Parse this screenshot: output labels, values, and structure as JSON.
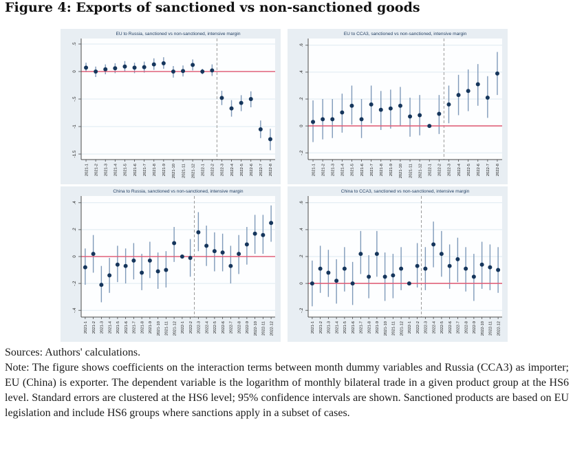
{
  "title": "Figure 4: Exports of sanctioned vs non-sanctioned goods",
  "notes": {
    "sources": "Sources: Authors' calculations.",
    "note": "Note: The figure shows coefficients on the interaction terms between month dummy variables and Russia (CCA3) as importer; EU (China) is exporter. The dependent variable is the logarithm of monthly bilateral trade in a given product group at the HS6 level. Standard errors are clustered at the HS6 level; 95% confidence intervals are shown. Sanctioned products are based on EU legislation and include HS6 groups where sanctions apply in a subset of cases."
  },
  "style": {
    "panel_bg": "#e8eef3",
    "plot_bg": "#fdfeff",
    "grid_color": "#dde9f1",
    "axis_color": "#4a4a4a",
    "tick_text_color": "#222222",
    "panel_title_color": "#1d3a5e",
    "point_color": "#16365c",
    "ci_color": "#7e99b9",
    "zero_line_color": "#e0607a",
    "dash_line_color": "#999999"
  },
  "chart_data": [
    {
      "type": "scatter",
      "title": "EU to Russia, sanctioned vs non-sanctioned, intensive margin",
      "x": [
        "2021-1",
        "2021-2",
        "2021-3",
        "2021-4",
        "2021-5",
        "2021-6",
        "2021-7",
        "2021-8",
        "2021-9",
        "2021-10",
        "2021-11",
        "2021-12",
        "2022-1",
        "2022-2",
        "2022-3",
        "2022-4",
        "2022-5",
        "2022-6",
        "2022-7",
        "2022-8"
      ],
      "ylim": [
        -1.6,
        0.6
      ],
      "yticks": [
        0.5,
        0,
        -0.5,
        -1,
        -1.5
      ],
      "ytick_labels": [
        ".5",
        "0",
        "-.5",
        "-1",
        "-1.5"
      ],
      "dash_after": "2022-2",
      "series": [
        {
          "name": "coefficient with 95% CI",
          "est": [
            0.07,
            0.0,
            0.04,
            0.06,
            0.09,
            0.07,
            0.08,
            0.13,
            0.15,
            0.0,
            0.01,
            0.12,
            0.0,
            0.02,
            -0.48,
            -0.67,
            -0.57,
            -0.5,
            -1.05,
            -1.23
          ],
          "lo": [
            -0.01,
            -0.1,
            -0.05,
            -0.03,
            0.0,
            -0.03,
            -0.02,
            0.03,
            0.05,
            -0.11,
            -0.09,
            0.02,
            -0.05,
            -0.08,
            -0.61,
            -0.82,
            -0.72,
            -0.65,
            -1.21,
            -1.43
          ],
          "hi": [
            0.16,
            0.09,
            0.13,
            0.15,
            0.19,
            0.16,
            0.18,
            0.24,
            0.26,
            0.1,
            0.11,
            0.22,
            0.05,
            0.13,
            -0.35,
            -0.52,
            -0.43,
            -0.36,
            -0.89,
            -1.04
          ]
        }
      ]
    },
    {
      "type": "scatter",
      "title": "EU to CCA3, sanctioned vs non-sanctioned, intensive margin",
      "x": [
        "2021-1",
        "2021-2",
        "2021-3",
        "2021-4",
        "2021-5",
        "2021-6",
        "2021-7",
        "2021-8",
        "2021-9",
        "2021-10",
        "2021-11",
        "2021-12",
        "2022-1",
        "2022-2",
        "2022-3",
        "2022-4",
        "2022-5",
        "2022-6",
        "2022-7",
        "2022-8"
      ],
      "ylim": [
        -0.25,
        0.65
      ],
      "yticks": [
        0.6,
        0.4,
        0.2,
        0,
        -0.2
      ],
      "ytick_labels": [
        ".6",
        ".4",
        ".2",
        "0",
        "-.2"
      ],
      "dash_after": "2022-2",
      "series": [
        {
          "name": "coefficient with 95% CI",
          "est": [
            0.03,
            0.05,
            0.05,
            0.1,
            0.15,
            0.05,
            0.16,
            0.12,
            0.13,
            0.15,
            0.07,
            0.08,
            0.0,
            0.09,
            0.16,
            0.23,
            0.26,
            0.31,
            0.21,
            0.39
          ],
          "lo": [
            -0.12,
            -0.1,
            -0.09,
            -0.05,
            0.01,
            -0.09,
            0.02,
            -0.03,
            -0.02,
            0.0,
            -0.08,
            -0.07,
            0.0,
            -0.06,
            0.02,
            0.08,
            0.11,
            0.15,
            0.06,
            0.23
          ],
          "hi": [
            0.19,
            0.2,
            0.2,
            0.24,
            0.3,
            0.2,
            0.3,
            0.26,
            0.27,
            0.29,
            0.21,
            0.23,
            0.0,
            0.23,
            0.3,
            0.38,
            0.42,
            0.46,
            0.37,
            0.55
          ]
        }
      ]
    },
    {
      "type": "scatter",
      "title": "China to Russia, sanctioned vs non-sanctioned, intensive margin",
      "x": [
        "2021-1",
        "2021-2",
        "2021-3",
        "2021-4",
        "2021-5",
        "2021-6",
        "2021-7",
        "2021-8",
        "2021-9",
        "2021-10",
        "2021-11",
        "2021-12",
        "2022-1",
        "2022-2",
        "2022-3",
        "2022-4",
        "2022-5",
        "2022-6",
        "2022-7",
        "2022-8",
        "2022-9",
        "2022-10",
        "2022-11",
        "2022-12"
      ],
      "ylim": [
        -0.45,
        0.45
      ],
      "yticks": [
        0.4,
        0.2,
        0,
        -0.2,
        -0.4
      ],
      "ytick_labels": [
        ".4",
        ".2",
        "0",
        "-.2",
        "-.4"
      ],
      "dash_after": "2022-2",
      "series": [
        {
          "name": "coefficient with 95% CI",
          "est": [
            -0.08,
            0.02,
            -0.21,
            -0.14,
            -0.06,
            -0.07,
            -0.03,
            -0.12,
            -0.03,
            -0.11,
            -0.1,
            0.1,
            0.0,
            -0.01,
            0.18,
            0.08,
            0.04,
            0.03,
            -0.07,
            0.02,
            0.09,
            0.17,
            0.16,
            0.25
          ],
          "lo": [
            -0.21,
            -0.12,
            -0.34,
            -0.27,
            -0.19,
            -0.2,
            -0.17,
            -0.25,
            -0.16,
            -0.24,
            -0.23,
            -0.04,
            0.0,
            -0.15,
            0.04,
            -0.07,
            -0.11,
            -0.11,
            -0.2,
            -0.13,
            -0.06,
            0.02,
            0.02,
            0.11
          ],
          "hi": [
            0.06,
            0.16,
            -0.07,
            -0.01,
            0.08,
            0.06,
            0.1,
            0.02,
            0.11,
            0.03,
            0.04,
            0.22,
            0.0,
            0.13,
            0.33,
            0.23,
            0.18,
            0.17,
            0.08,
            0.16,
            0.22,
            0.31,
            0.31,
            0.38
          ]
        }
      ]
    },
    {
      "type": "scatter",
      "title": "China to CCA3, sanctioned vs non-sanctioned, intensive margin",
      "x": [
        "2021-1",
        "2021-2",
        "2021-3",
        "2021-4",
        "2021-5",
        "2021-6",
        "2021-7",
        "2021-8",
        "2021-9",
        "2021-10",
        "2021-11",
        "2021-12",
        "2022-1",
        "2022-2",
        "2022-3",
        "2022-4",
        "2022-5",
        "2022-6",
        "2022-7",
        "2022-8",
        "2022-9",
        "2022-10",
        "2022-11",
        "2022-12"
      ],
      "ylim": [
        -0.25,
        0.65
      ],
      "yticks": [
        0.6,
        0.4,
        0.2,
        0,
        -0.2
      ],
      "ytick_labels": [
        ".6",
        ".4",
        ".2",
        "0",
        "-.2"
      ],
      "dash_after": "2022-2",
      "series": [
        {
          "name": "coefficient with 95% CI",
          "est": [
            0.0,
            0.11,
            0.08,
            0.02,
            0.11,
            0.0,
            0.22,
            0.05,
            0.22,
            0.05,
            0.06,
            0.11,
            0.0,
            0.13,
            0.11,
            0.29,
            0.22,
            0.13,
            0.18,
            0.11,
            0.05,
            0.14,
            0.12,
            0.1
          ],
          "lo": [
            -0.17,
            -0.07,
            -0.1,
            -0.15,
            -0.06,
            -0.16,
            0.07,
            -0.11,
            0.05,
            -0.13,
            -0.11,
            -0.05,
            0.0,
            -0.03,
            -0.05,
            0.12,
            0.05,
            -0.04,
            0.01,
            -0.06,
            -0.13,
            -0.04,
            -0.05,
            -0.07
          ],
          "hi": [
            0.17,
            0.28,
            0.25,
            0.18,
            0.27,
            0.16,
            0.39,
            0.21,
            0.39,
            0.23,
            0.22,
            0.27,
            0.0,
            0.3,
            0.27,
            0.46,
            0.39,
            0.29,
            0.34,
            0.27,
            0.22,
            0.31,
            0.29,
            0.27
          ]
        }
      ]
    }
  ]
}
